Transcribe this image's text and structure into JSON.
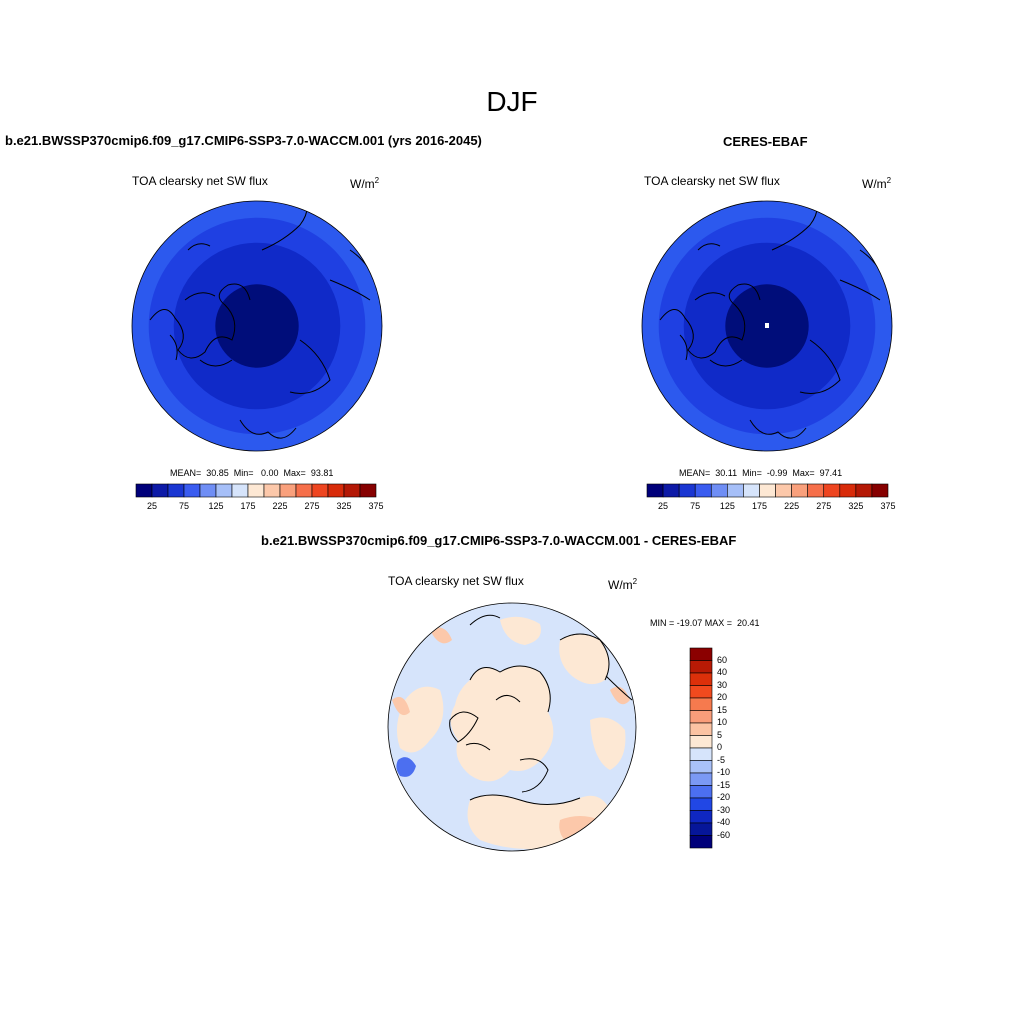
{
  "figure": {
    "season": "DJF",
    "colors": {
      "land_outline": "#000000",
      "pole_missing": "#ffffff",
      "background": "#ffffff"
    }
  },
  "panels": [
    {
      "title": "b.e21.BWSSP370cmip6.f09_g17.CMIP6-SSP3-7.0-WACCM.001 (yrs 2016-2045)",
      "variable": "TOA clearsky net SW flux",
      "units": "W/m",
      "units_exp": "2",
      "stats": "MEAN=  30.85  Min=   0.00  Max=  93.81",
      "rings": [
        {
          "value": 75,
          "color": "#2c59ee"
        },
        {
          "value": 65,
          "color": "#1f40e2"
        },
        {
          "value": 50,
          "color": "#102ac8"
        },
        {
          "value": 25,
          "color": "#000d7a"
        }
      ]
    },
    {
      "title": "CERES-EBAF",
      "variable": "TOA clearsky net SW flux",
      "units": "W/m",
      "units_exp": "2",
      "stats": "MEAN=  30.11  Min=  -0.99  Max=  97.41",
      "rings": [
        {
          "value": 75,
          "color": "#2c59ee"
        },
        {
          "value": 65,
          "color": "#1f40e2"
        },
        {
          "value": 50,
          "color": "#102ac8"
        },
        {
          "value": 25,
          "color": "#000d7a"
        }
      ]
    }
  ],
  "abs_colorbar": {
    "labels": [
      "25",
      "75",
      "125",
      "175",
      "225",
      "275",
      "325",
      "375"
    ],
    "colors": [
      "#00007a",
      "#0d1aa7",
      "#1a36d2",
      "#3a5cf0",
      "#6f8ef5",
      "#a6bff8",
      "#d6e4fb",
      "#fde8d4",
      "#fcc8aa",
      "#f9a07c",
      "#f66f4a",
      "#ee4520",
      "#d82b0a",
      "#b41805",
      "#860000"
    ]
  },
  "diff_panel": {
    "title": "b.e21.BWSSP370cmip6.f09_g17.CMIP6-SSP3-7.0-WACCM.001 - CERES-EBAF",
    "variable": "TOA clearsky net SW flux",
    "units": "W/m",
    "units_exp": "2",
    "minmax": "MIN = -19.07 MAX =  20.41",
    "ocean_color": "#d6e4fb",
    "land_color": "#fde8d4"
  },
  "diff_colorbar": {
    "labels": [
      "60",
      "40",
      "30",
      "20",
      "15",
      "10",
      "5",
      "0",
      "-5",
      "-10",
      "-15",
      "-20",
      "-30",
      "-40",
      "-60"
    ],
    "colors": [
      "#8b0000",
      "#b81a05",
      "#dc300a",
      "#f14a1e",
      "#f67a4e",
      "#f99d7a",
      "#fbc3a3",
      "#fde8d4",
      "#d6e4fb",
      "#a9c1f8",
      "#7b99f4",
      "#4c6ff0",
      "#2147e5",
      "#0f27c1",
      "#061699",
      "#00007a"
    ]
  }
}
